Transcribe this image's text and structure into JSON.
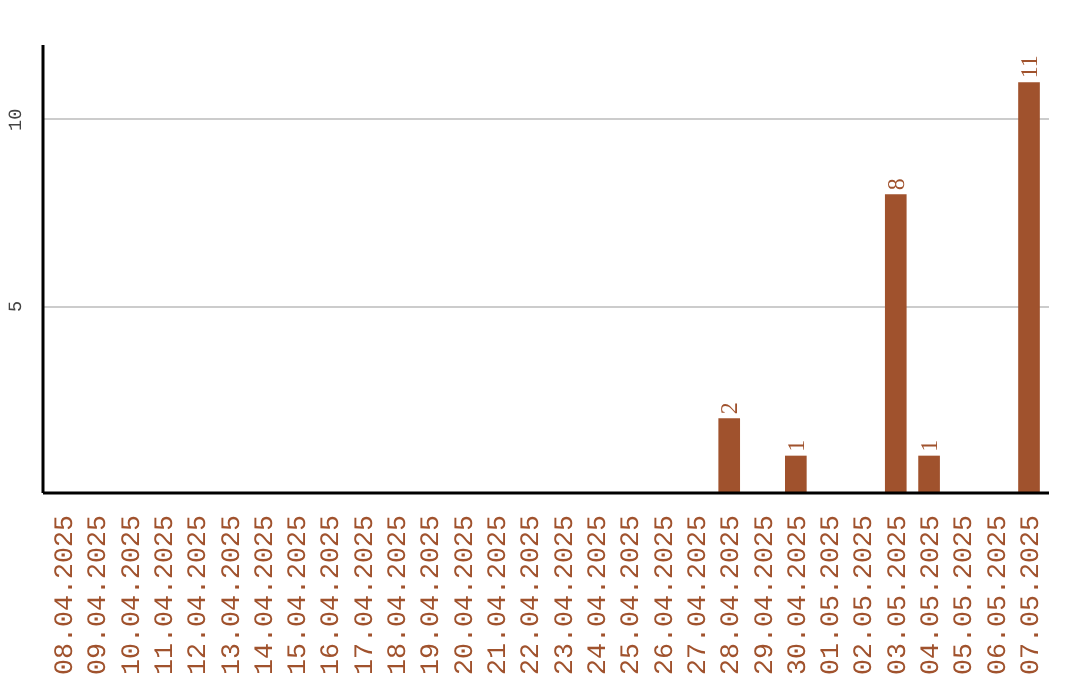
{
  "chart_data": {
    "type": "bar",
    "categories": [
      "08.04.2025",
      "09.04.2025",
      "10.04.2025",
      "11.04.2025",
      "12.04.2025",
      "13.04.2025",
      "14.04.2025",
      "15.04.2025",
      "16.04.2025",
      "17.04.2025",
      "18.04.2025",
      "19.04.2025",
      "20.04.2025",
      "21.04.2025",
      "22.04.2025",
      "23.04.2025",
      "24.04.2025",
      "25.04.2025",
      "26.04.2025",
      "27.04.2025",
      "28.04.2025",
      "29.04.2025",
      "30.04.2025",
      "01.05.2025",
      "02.05.2025",
      "03.05.2025",
      "04.05.2025",
      "05.05.2025",
      "06.05.2025",
      "07.05.2025"
    ],
    "values": [
      0,
      0,
      0,
      0,
      0,
      0,
      0,
      0,
      0,
      0,
      0,
      0,
      0,
      0,
      0,
      0,
      0,
      0,
      0,
      0,
      2,
      0,
      1,
      0,
      0,
      8,
      1,
      0,
      0,
      11
    ],
    "value_labels": [
      null,
      null,
      null,
      null,
      null,
      null,
      null,
      null,
      null,
      null,
      null,
      null,
      null,
      null,
      null,
      null,
      null,
      null,
      null,
      null,
      "2",
      null,
      "1",
      null,
      null,
      "8",
      "1",
      null,
      null,
      "11"
    ],
    "color": "#a0522d",
    "ylim": [
      0,
      12
    ],
    "yticks": [
      5,
      10
    ],
    "grid": "y"
  }
}
